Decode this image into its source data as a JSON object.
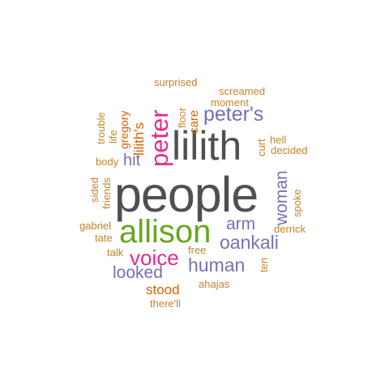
{
  "colors": {
    "gray": "#505050",
    "green": "#66a61e",
    "magenta": "#e7298a",
    "purple": "#7570b3",
    "orange": "#d95f02",
    "tan": "#c4832b"
  },
  "words": [
    {
      "text": "people",
      "color": "gray",
      "weight": 1.0
    },
    {
      "text": "lilith",
      "color": "gray",
      "weight": 0.78
    },
    {
      "text": "allison",
      "color": "green",
      "weight": 0.55
    },
    {
      "text": "peter",
      "color": "magenta",
      "weight": 0.45
    },
    {
      "text": "peter's",
      "color": "purple",
      "weight": 0.36
    },
    {
      "text": "voice",
      "color": "magenta",
      "weight": 0.38
    },
    {
      "text": "human",
      "color": "purple",
      "weight": 0.32
    },
    {
      "text": "oankali",
      "color": "purple",
      "weight": 0.32
    },
    {
      "text": "arm",
      "color": "purple",
      "weight": 0.28
    },
    {
      "text": "woman",
      "color": "purple",
      "weight": 0.28
    },
    {
      "text": "looked",
      "color": "purple",
      "weight": 0.28
    },
    {
      "text": "hit",
      "color": "purple",
      "weight": 0.26
    },
    {
      "text": "lilith's",
      "color": "orange",
      "weight": 0.22
    },
    {
      "text": "stood",
      "color": "orange",
      "weight": 0.22
    },
    {
      "text": "gregory",
      "color": "orange",
      "weight": 0.18
    },
    {
      "text": "care",
      "color": "orange",
      "weight": 0.18
    },
    {
      "text": "surprised",
      "color": "tan",
      "weight": 0.15
    },
    {
      "text": "screamed",
      "color": "tan",
      "weight": 0.15
    },
    {
      "text": "moment",
      "color": "tan",
      "weight": 0.15
    },
    {
      "text": "floor",
      "color": "tan",
      "weight": 0.15
    },
    {
      "text": "trouble",
      "color": "tan",
      "weight": 0.15
    },
    {
      "text": "life",
      "color": "tan",
      "weight": 0.15
    },
    {
      "text": "hell",
      "color": "tan",
      "weight": 0.15
    },
    {
      "text": "curt",
      "color": "tan",
      "weight": 0.15
    },
    {
      "text": "decided",
      "color": "tan",
      "weight": 0.15
    },
    {
      "text": "body",
      "color": "tan",
      "weight": 0.15
    },
    {
      "text": "friends",
      "color": "tan",
      "weight": 0.15
    },
    {
      "text": "sided",
      "color": "tan",
      "weight": 0.15
    },
    {
      "text": "spoke",
      "color": "tan",
      "weight": 0.15
    },
    {
      "text": "derrick",
      "color": "tan",
      "weight": 0.15
    },
    {
      "text": "gabriel",
      "color": "tan",
      "weight": 0.15
    },
    {
      "text": "tate",
      "color": "tan",
      "weight": 0.15
    },
    {
      "text": "free",
      "color": "tan",
      "weight": 0.15
    },
    {
      "text": "talk",
      "color": "tan",
      "weight": 0.15
    },
    {
      "text": "ten",
      "color": "tan",
      "weight": 0.15
    },
    {
      "text": "ahajas",
      "color": "tan",
      "weight": 0.15
    },
    {
      "text": "there'll",
      "color": "tan",
      "weight": 0.15
    }
  ]
}
